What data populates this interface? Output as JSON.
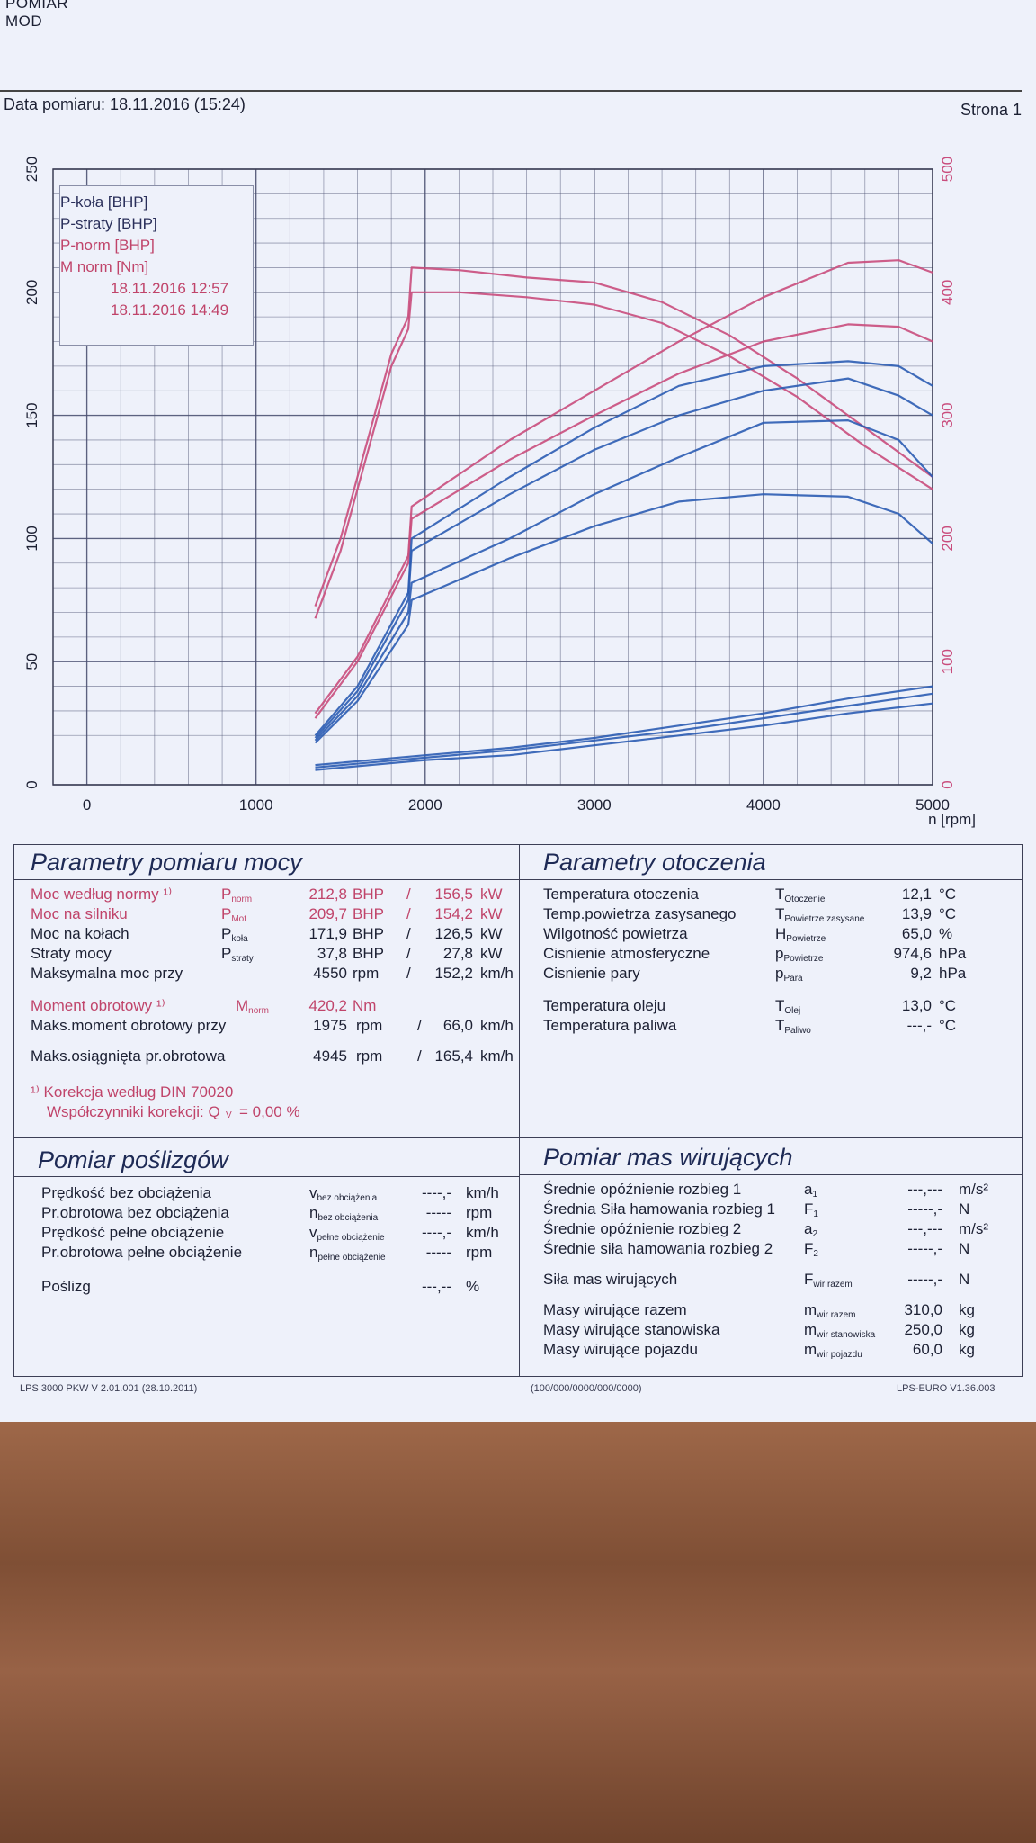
{
  "header": {
    "top_lines": [
      "POMIAR",
      "MOD"
    ],
    "date_label": "Data pomiaru: 18.11.2016 (15:24)",
    "page_label": "Strona 1"
  },
  "legend": {
    "items": [
      "P-koła [BHP]",
      "P-straty [BHP]",
      "P-norm [BHP]",
      "M norm [Nm]"
    ],
    "runs": [
      "18.11.2016 12:57",
      "18.11.2016 14:49"
    ]
  },
  "chart_data": {
    "type": "line",
    "xlabel": "n [rpm]",
    "xlim": [
      -200,
      5000
    ],
    "ylim_left": [
      0,
      250
    ],
    "ylim_right": [
      0,
      500
    ],
    "x_ticks": [
      0,
      1000,
      2000,
      3000,
      4000,
      5000
    ],
    "y_ticks_left": [
      0,
      50,
      100,
      150,
      200,
      250
    ],
    "y_ticks_right": [
      0,
      100,
      200,
      300,
      400,
      500
    ],
    "colors": {
      "blue": "#2b5cb2",
      "pink": "#c94c7c",
      "grid": "#4a4f70"
    },
    "series": [
      {
        "axis": "right",
        "color": "pink",
        "x": [
          1350,
          1500,
          1650,
          1800,
          1900,
          1920,
          2200,
          2600,
          3000,
          3400,
          3800,
          4200,
          4600,
          5000
        ],
        "values": [
          145,
          200,
          275,
          350,
          380,
          420,
          418,
          412,
          408,
          392,
          365,
          330,
          290,
          250
        ]
      },
      {
        "axis": "right",
        "color": "pink",
        "x": [
          1350,
          1500,
          1650,
          1800,
          1900,
          1920,
          2200,
          2600,
          3000,
          3400,
          3800,
          4200,
          4600,
          5000
        ],
        "values": [
          135,
          190,
          265,
          340,
          370,
          400,
          400,
          396,
          390,
          375,
          348,
          315,
          275,
          240
        ]
      },
      {
        "axis": "left",
        "color": "pink",
        "x": [
          1350,
          1600,
          1900,
          1920,
          2500,
          3000,
          3500,
          4000,
          4500,
          4800,
          5000
        ],
        "values": [
          29,
          52,
          93,
          113,
          140,
          160,
          180,
          198,
          212,
          213,
          208
        ]
      },
      {
        "axis": "left",
        "color": "pink",
        "x": [
          1350,
          1600,
          1900,
          1920,
          2500,
          3000,
          3500,
          4000,
          4500,
          4800,
          5000
        ],
        "values": [
          27,
          50,
          90,
          108,
          132,
          150,
          167,
          180,
          187,
          186,
          180
        ]
      },
      {
        "axis": "left",
        "color": "blue",
        "x": [
          1350,
          1600,
          1900,
          1920,
          2500,
          3000,
          3500,
          4000,
          4500,
          4800,
          5000
        ],
        "values": [
          20,
          40,
          78,
          100,
          125,
          145,
          162,
          170,
          172,
          170,
          162
        ]
      },
      {
        "axis": "left",
        "color": "blue",
        "x": [
          1350,
          1600,
          1900,
          1920,
          2500,
          3000,
          3500,
          4000,
          4500,
          4800,
          5000
        ],
        "values": [
          19,
          38,
          75,
          95,
          118,
          136,
          150,
          160,
          165,
          158,
          150
        ]
      },
      {
        "axis": "left",
        "color": "blue",
        "x": [
          1350,
          1600,
          1900,
          1920,
          2500,
          3000,
          3500,
          4000,
          4500,
          4800,
          5000
        ],
        "values": [
          18,
          36,
          70,
          82,
          100,
          118,
          133,
          147,
          148,
          140,
          125
        ]
      },
      {
        "axis": "left",
        "color": "blue",
        "x": [
          1350,
          1600,
          1900,
          1920,
          2500,
          3000,
          3500,
          4000,
          4500,
          4800,
          5000
        ],
        "values": [
          17,
          34,
          65,
          75,
          92,
          105,
          115,
          118,
          117,
          110,
          98
        ]
      },
      {
        "axis": "left",
        "color": "blue",
        "x": [
          1350,
          2000,
          2500,
          3000,
          3500,
          4000,
          4500,
          5000
        ],
        "values": [
          8,
          12,
          15,
          19,
          24,
          29,
          35,
          40
        ]
      },
      {
        "axis": "left",
        "color": "blue",
        "x": [
          1350,
          2000,
          2500,
          3000,
          3500,
          4000,
          4500,
          5000
        ],
        "values": [
          7,
          11,
          14,
          18,
          22,
          27,
          32,
          37
        ]
      },
      {
        "axis": "left",
        "color": "blue",
        "x": [
          1350,
          2000,
          2500,
          3000,
          3500,
          4000,
          4500,
          5000
        ],
        "values": [
          6,
          10,
          12,
          16,
          20,
          24,
          29,
          33
        ]
      }
    ]
  },
  "power": {
    "title": "Parametry pomiaru mocy",
    "rows": [
      {
        "label": "Moc według normy ¹⁾",
        "sym": "P",
        "sub": "norm",
        "v1": "212,8",
        "u1": "BHP",
        "sep": "/",
        "v2": "156,5",
        "u2": "kW"
      },
      {
        "label": "Moc na silniku",
        "sym": "P",
        "sub": "Mot",
        "v1": "209,7",
        "u1": "BHP",
        "sep": "/",
        "v2": "154,2",
        "u2": "kW"
      },
      {
        "label": "Moc na kołach",
        "sym": "P",
        "sub": "koła",
        "v1": "171,9",
        "u1": "BHP",
        "sep": "/",
        "v2": "126,5",
        "u2": "kW"
      },
      {
        "label": "Straty mocy",
        "sym": "P",
        "sub": "straty",
        "v1": "37,8",
        "u1": "BHP",
        "sep": "/",
        "v2": "27,8",
        "u2": "kW"
      },
      {
        "label": "Maksymalna moc przy",
        "sym": "",
        "sub": "",
        "v1": "4550",
        "u1": "rpm",
        "sep": "/",
        "v2": "152,2",
        "u2": "km/h"
      }
    ],
    "torque": {
      "label": "Moment obrotowy ¹⁾",
      "sym": "M",
      "sub": "norm",
      "v1": "420,2",
      "u1": "Nm"
    },
    "torque_at": {
      "label": "Maks.moment obrotowy przy",
      "v1": "1975",
      "u1": "rpm",
      "sep": "/",
      "v2": "66,0",
      "u2": "km/h"
    },
    "max_rpm": {
      "label": "Maks.osiągnięta pr.obrotowa",
      "v1": "4945",
      "u1": "rpm",
      "sep": "/",
      "v2": "165,4",
      "u2": "km/h"
    },
    "correction": "¹⁾ Korekcja według DIN 70020",
    "factor_label": "Współczynniki korekcji: Q",
    "factor_sub": "V",
    "factor_value": "=   0,00 %"
  },
  "ambient": {
    "title": "Parametry otoczenia",
    "rows": [
      {
        "label": "Temperatura otoczenia",
        "sym": "T",
        "sub": "Otoczenie",
        "val": "12,1",
        "unit": "°C"
      },
      {
        "label": "Temp.powietrza zasysanego",
        "sym": "T",
        "sub": "Powietrze zasysane",
        "val": "13,9",
        "unit": "°C"
      },
      {
        "label": "Wilgotność powietrza",
        "sym": "H",
        "sub": "Powietrze",
        "val": "65,0",
        "unit": "%"
      },
      {
        "label": "Cisnienie atmosferyczne",
        "sym": "p",
        "sub": "Powietrze",
        "val": "974,6",
        "unit": "hPa"
      },
      {
        "label": "Cisnienie pary",
        "sym": "p",
        "sub": "Para",
        "val": "9,2",
        "unit": "hPa"
      },
      {
        "label": "Temperatura oleju",
        "sym": "T",
        "sub": "Olej",
        "val": "13,0",
        "unit": "°C"
      },
      {
        "label": "Temperatura paliwa",
        "sym": "T",
        "sub": "Paliwo",
        "val": "---,-",
        "unit": "°C"
      }
    ]
  },
  "slip": {
    "title": "Pomiar poślizgów",
    "rows": [
      {
        "label": "Prędkość bez obciążenia",
        "sym": "v",
        "sub": "bez obciążenia",
        "val": "----,-",
        "unit": "km/h"
      },
      {
        "label": "Pr.obrotowa bez obciążenia",
        "sym": "n",
        "sub": "bez obciążenia",
        "val": "-----",
        "unit": "rpm"
      },
      {
        "label": "Prędkość pełne obciążenie",
        "sym": "v",
        "sub": "pełne obciążenie",
        "val": "----,-",
        "unit": "km/h"
      },
      {
        "label": "Pr.obrotowa pełne obciążenie",
        "sym": "n",
        "sub": "pełne obciążenie",
        "val": "-----",
        "unit": "rpm"
      },
      {
        "label": "Poślizg",
        "sym": "",
        "sub": "",
        "val": "---,--",
        "unit": "%"
      }
    ]
  },
  "masses": {
    "title": "Pomiar mas wirujących",
    "rows": [
      {
        "label": "Średnie opóźnienie rozbieg 1",
        "sym": "a",
        "sub": "1",
        "val": "---,---",
        "unit": "m/s²"
      },
      {
        "label": "Średnia Siła hamowania rozbieg 1",
        "sym": "F",
        "sub": "1",
        "val": "-----,-",
        "unit": "N"
      },
      {
        "label": "Średnie opóźnienie rozbieg 2",
        "sym": "a",
        "sub": "2",
        "val": "---,---",
        "unit": "m/s²"
      },
      {
        "label": "Średnie siła hamowania rozbieg 2",
        "sym": "F",
        "sub": "2",
        "val": "-----,-",
        "unit": "N"
      },
      {
        "label": "Siła mas wirujących",
        "sym": "F",
        "sub": "wir razem",
        "val": "-----,-",
        "unit": "N"
      },
      {
        "label": "Masy wirujące razem",
        "sym": "m",
        "sub": "wir razem",
        "val": "310,0",
        "unit": "kg"
      },
      {
        "label": "Masy wirujące stanowiska",
        "sym": "m",
        "sub": "wir stanowiska",
        "val": "250,0",
        "unit": "kg"
      },
      {
        "label": "Masy wirujące pojazdu",
        "sym": "m",
        "sub": "wir pojazdu",
        "val": "60,0",
        "unit": "kg"
      }
    ]
  },
  "footer": {
    "left": "LPS 3000 PKW V 2.01.001 (28.10.2011)",
    "center": "(100/000/0000/000/0000)",
    "right": "LPS-EURO V1.36.003"
  }
}
